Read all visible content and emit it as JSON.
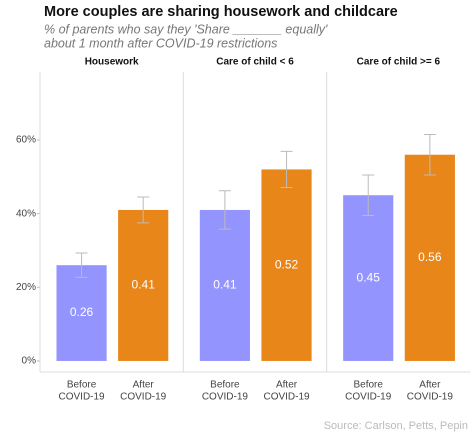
{
  "chart_data": {
    "type": "bar",
    "title": "More couples are sharing housework and childcare",
    "subtitle": [
      "% of parents who say they 'Share _______ equally'",
      "about 1 month after COVID-19 restrictions"
    ],
    "source": "Source: Carlson, Petts, Pepin",
    "categories": [
      [
        "Before",
        "COVID-19"
      ],
      [
        "After",
        "COVID-19"
      ]
    ],
    "colors": [
      "#9494ff",
      "#e8861a"
    ],
    "ylim": [
      -0.03,
      0.79
    ],
    "yticks": [
      {
        "value": 0,
        "label": "0%"
      },
      {
        "value": 0.2,
        "label": "20%"
      },
      {
        "value": 0.4,
        "label": "40%"
      },
      {
        "value": 0.6,
        "label": "60%"
      }
    ],
    "facets": [
      {
        "title": "Housework",
        "values": [
          0.26,
          0.41
        ],
        "errors": [
          0.033,
          0.035
        ]
      },
      {
        "title": "Care of child < 6",
        "values": [
          0.41,
          0.52
        ],
        "errors": [
          0.052,
          0.049
        ]
      },
      {
        "title": "Care of child >= 6",
        "values": [
          0.45,
          0.56
        ],
        "errors": [
          0.055,
          0.055
        ]
      }
    ]
  }
}
